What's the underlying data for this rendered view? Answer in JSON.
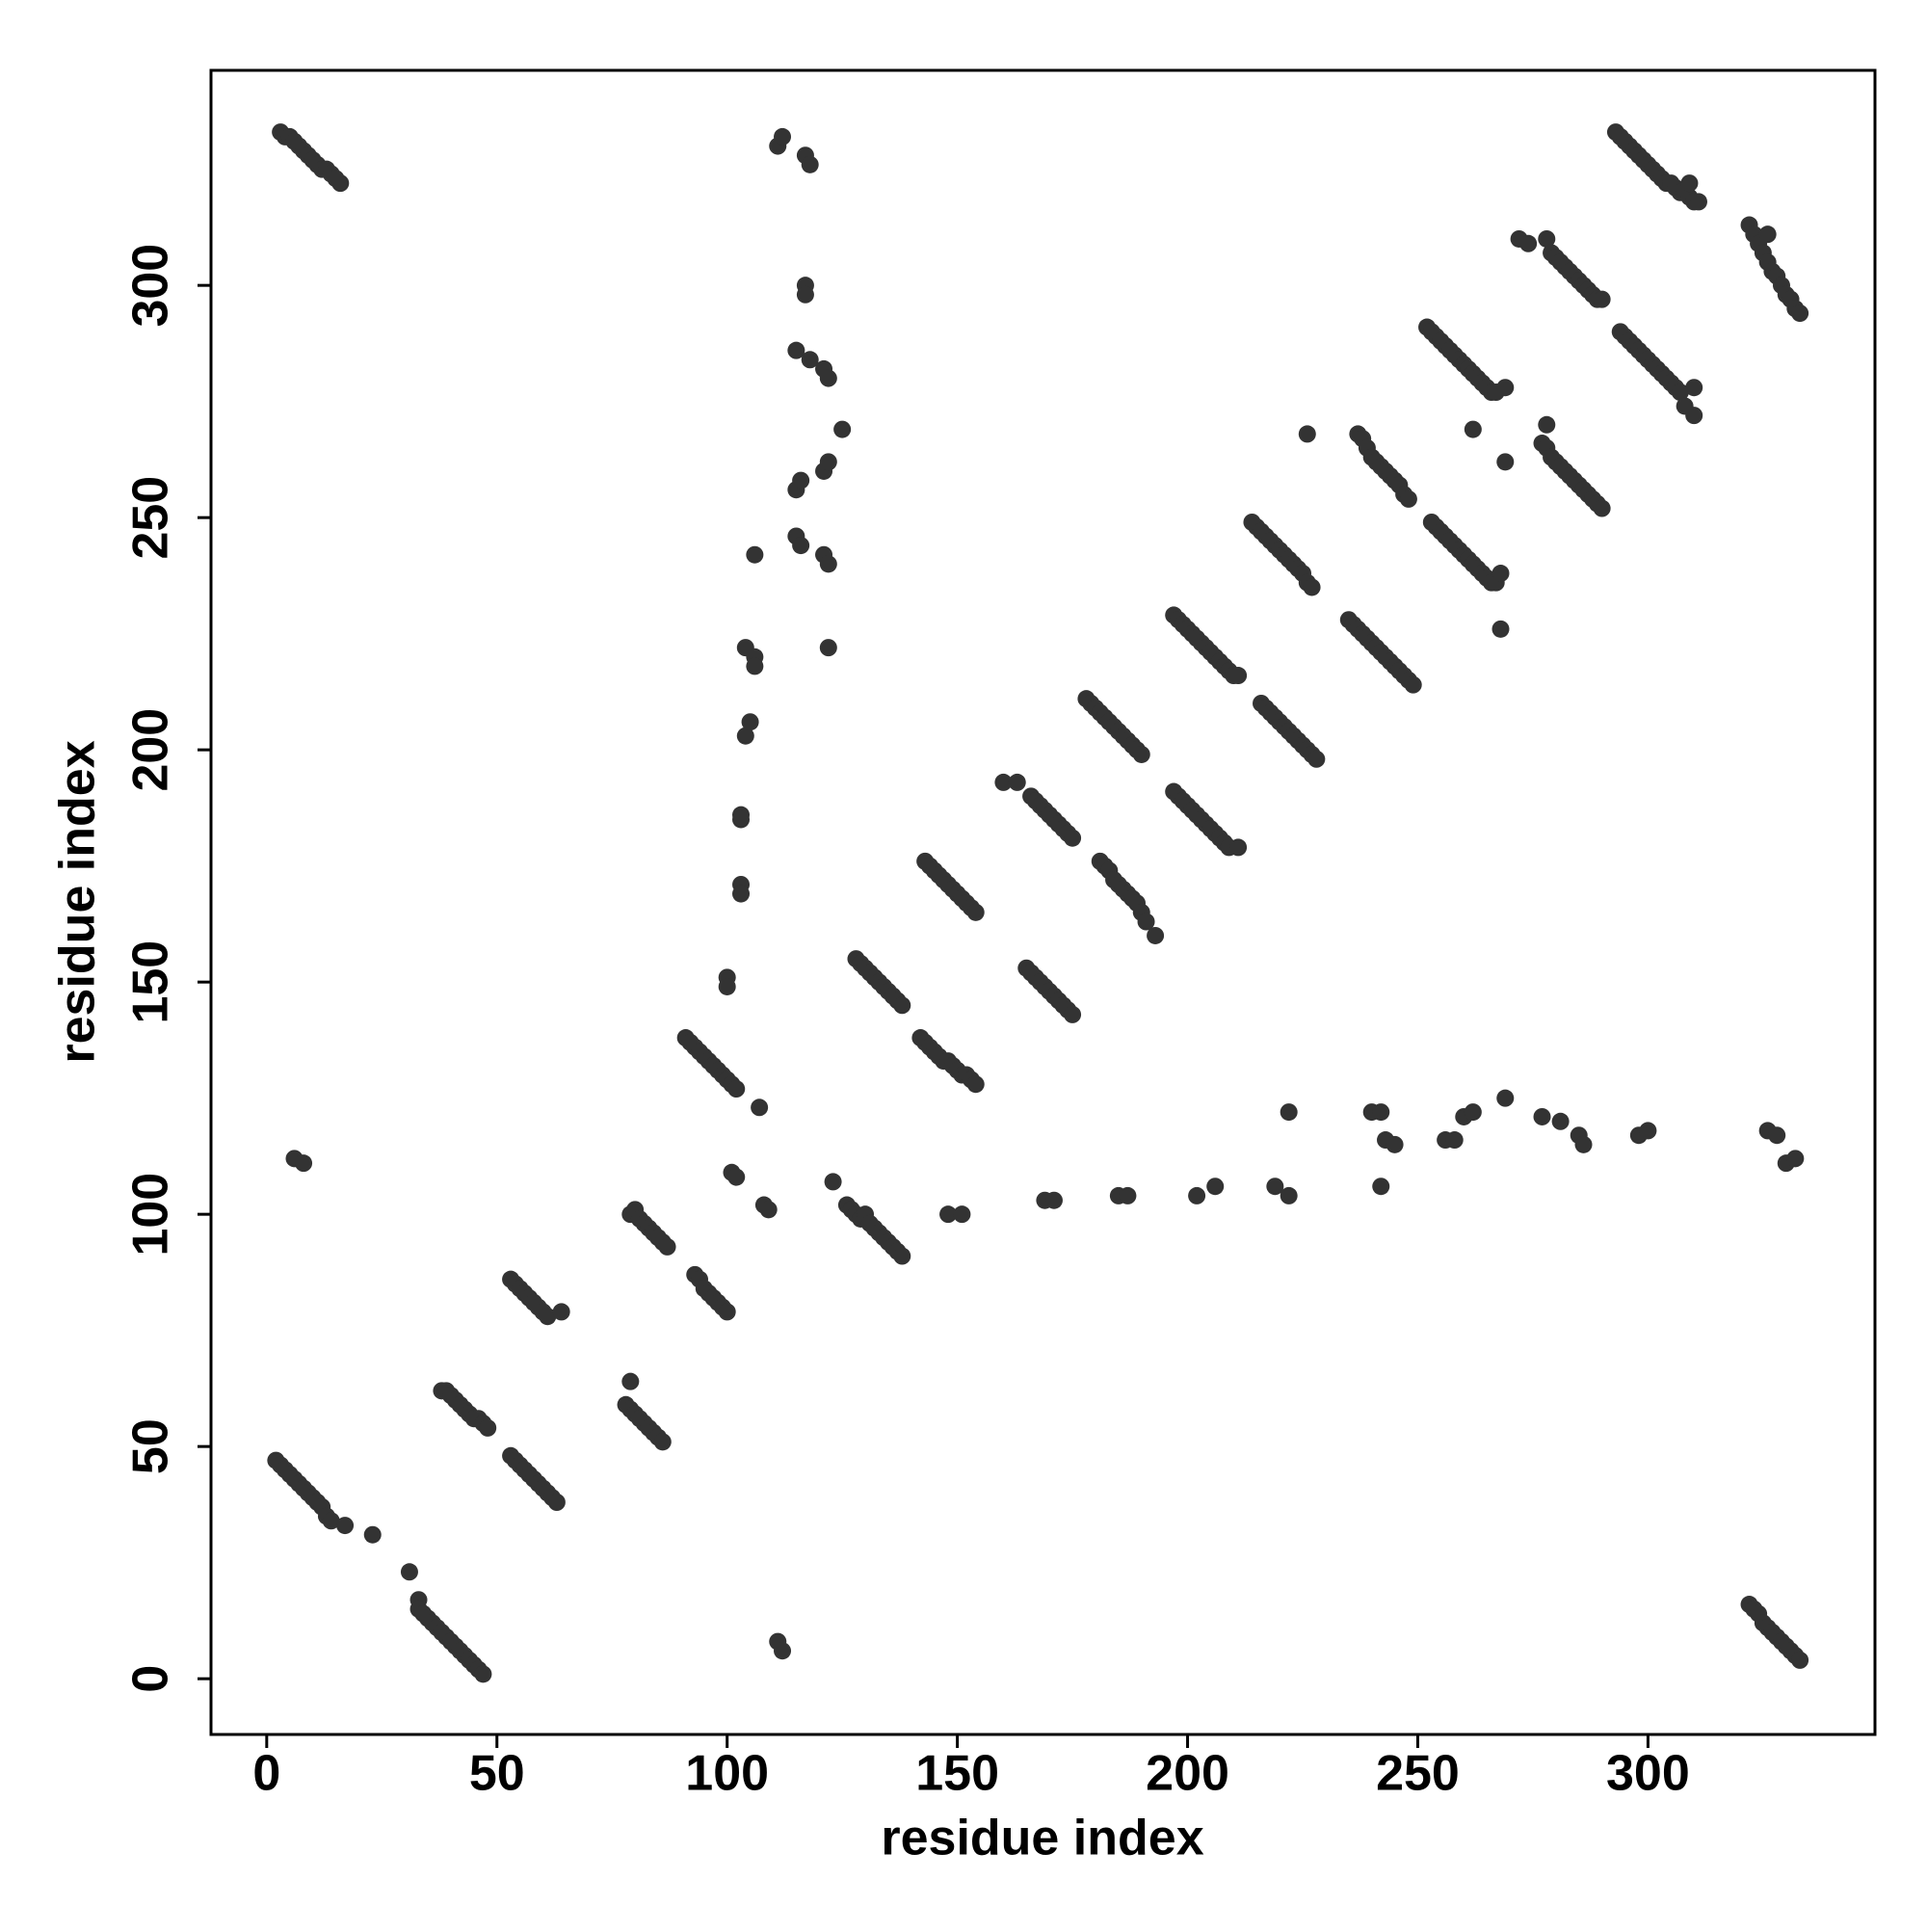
{
  "chart_data": {
    "type": "scatter",
    "xlabel": "residue index",
    "ylabel": "residue index",
    "color": "#333333",
    "xlim": [
      -12.1,
      349.3
    ],
    "ylim": [
      -12,
      346.3
    ],
    "xticks": [
      0,
      50,
      100,
      150,
      200,
      250,
      300
    ],
    "yticks": [
      0,
      50,
      100,
      150,
      200,
      250,
      300
    ],
    "x": [
      3,
      4,
      5,
      6,
      7,
      8,
      9,
      10,
      11,
      12,
      13,
      14,
      15,
      16,
      2,
      3,
      4,
      5,
      6,
      7,
      8,
      9,
      10,
      11,
      12,
      13,
      14,
      17,
      23,
      31,
      33,
      33,
      34,
      35,
      36,
      37,
      38,
      39,
      40,
      41,
      42,
      43,
      44,
      45,
      46,
      47,
      6,
      8,
      38,
      39,
      40,
      41,
      42,
      43,
      44,
      45,
      46,
      47,
      48,
      53,
      54,
      55,
      56,
      57,
      58,
      59,
      60,
      61,
      64,
      53,
      54,
      55,
      56,
      57,
      58,
      59,
      60,
      61,
      62,
      63,
      78,
      79,
      80,
      81,
      82,
      83,
      84,
      85,
      86,
      79,
      79,
      80,
      81,
      82,
      83,
      84,
      85,
      86,
      87,
      93,
      94,
      95,
      96,
      97,
      98,
      99,
      100,
      91,
      92,
      93,
      94,
      95,
      96,
      97,
      98,
      99,
      100,
      101,
      102,
      100,
      100,
      101,
      102,
      103,
      103,
      103,
      103,
      104,
      105,
      104,
      106,
      106,
      106,
      107,
      108,
      109,
      111,
      112,
      111,
      112,
      117,
      118,
      117,
      117,
      115,
      118,
      121,
      122,
      115,
      116,
      115,
      116,
      121,
      122,
      122,
      121,
      122,
      125,
      123,
      126,
      127,
      128,
      129,
      130,
      131,
      132,
      133,
      134,
      135,
      136,
      137,
      138,
      128,
      129,
      130,
      131,
      132,
      133,
      134,
      135,
      136,
      137,
      138,
      143,
      144,
      145,
      146,
      147,
      148,
      149,
      150,
      151,
      152,
      153,
      154,
      142,
      143,
      144,
      145,
      146,
      147,
      148,
      149,
      150,
      151,
      152,
      153,
      154,
      148,
      151,
      169,
      171,
      185,
      187,
      202,
      206,
      219,
      222,
      222,
      240,
      242,
      243,
      245,
      242,
      256,
      258,
      260,
      262,
      269,
      277,
      281,
      285,
      286,
      298,
      300,
      326,
      328,
      330,
      332,
      160,
      163,
      166,
      167,
      168,
      169,
      170,
      171,
      172,
      173,
      174,
      175,
      165,
      166,
      167,
      168,
      169,
      170,
      171,
      172,
      173,
      174,
      175,
      178,
      179,
      180,
      181,
      182,
      183,
      184,
      185,
      186,
      187,
      188,
      189,
      190,
      181,
      182,
      183,
      184,
      185,
      186,
      187,
      188,
      189,
      190,
      191,
      193,
      197,
      198,
      199,
      200,
      201,
      202,
      203,
      204,
      205,
      206,
      207,
      208,
      209,
      210,
      211,
      197,
      198,
      199,
      200,
      201,
      202,
      203,
      204,
      205,
      206,
      207,
      208,
      209,
      211,
      214,
      215,
      216,
      217,
      218,
      219,
      220,
      221,
      222,
      223,
      224,
      225,
      226,
      227,
      216,
      217,
      218,
      219,
      220,
      221,
      222,
      223,
      224,
      225,
      226,
      227,
      228,
      226,
      237,
      238,
      239,
      240,
      241,
      242,
      243,
      244,
      245,
      246,
      247,
      248,
      235,
      236,
      237,
      238,
      239,
      240,
      241,
      242,
      243,
      244,
      245,
      246,
      247,
      248,
      249,
      252,
      253,
      254,
      255,
      256,
      257,
      258,
      259,
      260,
      261,
      262,
      263,
      264,
      265,
      266,
      267,
      269,
      262,
      253,
      254,
      255,
      256,
      257,
      258,
      259,
      260,
      261,
      262,
      263,
      264,
      265,
      266,
      267,
      268,
      268,
      269,
      272,
      274,
      278,
      279,
      280,
      281,
      282,
      283,
      284,
      285,
      286,
      287,
      288,
      289,
      290,
      277,
      278,
      279,
      280,
      281,
      282,
      283,
      284,
      285,
      286,
      287,
      288,
      289,
      290,
      278,
      293,
      294,
      295,
      296,
      297,
      298,
      299,
      300,
      301,
      302,
      303,
      304,
      305,
      306,
      307,
      308,
      309,
      310,
      311,
      309,
      294,
      295,
      296,
      297,
      298,
      299,
      300,
      301,
      302,
      303,
      304,
      305,
      306,
      307,
      308,
      310,
      310,
      322,
      323,
      324,
      325,
      326,
      327,
      328,
      329,
      330,
      331,
      332,
      333,
      326,
      322,
      323,
      324,
      325,
      326,
      327,
      328,
      329,
      330,
      331,
      332,
      333
    ],
    "values": [
      333,
      332,
      332,
      331,
      330,
      329,
      328,
      327,
      326,
      325,
      325,
      324,
      323,
      322,
      47,
      46,
      45,
      44,
      43,
      42,
      41,
      40,
      39,
      38,
      37,
      35,
      34,
      33,
      31,
      23,
      17,
      15,
      14,
      13,
      12,
      11,
      10,
      9,
      8,
      7,
      6,
      5,
      4,
      3,
      2,
      1,
      112,
      111,
      62,
      62,
      61,
      60,
      59,
      58,
      57,
      56,
      56,
      55,
      54,
      86,
      85,
      84,
      83,
      82,
      81,
      80,
      79,
      78,
      79,
      48,
      47,
      46,
      45,
      44,
      43,
      42,
      41,
      40,
      39,
      38,
      59,
      58,
      57,
      56,
      55,
      54,
      53,
      52,
      51,
      64,
      100,
      101,
      99,
      98,
      97,
      96,
      95,
      94,
      93,
      87,
      86,
      84,
      83,
      82,
      81,
      80,
      79,
      138,
      137,
      136,
      135,
      134,
      133,
      132,
      131,
      130,
      129,
      128,
      127,
      151,
      149,
      109,
      108,
      171,
      169,
      186,
      185,
      203,
      206,
      222,
      220,
      218,
      242,
      123,
      102,
      101,
      8,
      6,
      330,
      332,
      328,
      326,
      300,
      298,
      286,
      284,
      282,
      280,
      256,
      258,
      246,
      244,
      242,
      240,
      222,
      260,
      262,
      269,
      107,
      102,
      101,
      100,
      99,
      100,
      98,
      97,
      96,
      95,
      94,
      93,
      92,
      91,
      155,
      154,
      153,
      152,
      151,
      150,
      149,
      148,
      147,
      146,
      145,
      176,
      175,
      174,
      173,
      172,
      171,
      170,
      169,
      168,
      167,
      166,
      165,
      138,
      137,
      136,
      135,
      134,
      133,
      133,
      132,
      131,
      130,
      130,
      129,
      128,
      100,
      100,
      103,
      103,
      104,
      104,
      104,
      106,
      106,
      104,
      122,
      122,
      122,
      116,
      115,
      106,
      116,
      116,
      121,
      122,
      125,
      121,
      120,
      117,
      115,
      117,
      118,
      118,
      117,
      111,
      112,
      193,
      193,
      190,
      189,
      188,
      187,
      186,
      185,
      184,
      183,
      182,
      181,
      153,
      152,
      151,
      150,
      149,
      148,
      147,
      146,
      145,
      144,
      143,
      211,
      210,
      209,
      208,
      207,
      206,
      205,
      204,
      203,
      202,
      201,
      200,
      199,
      176,
      175,
      174,
      172,
      171,
      170,
      169,
      168,
      167,
      165,
      163,
      160,
      229,
      228,
      227,
      226,
      225,
      224,
      223,
      222,
      221,
      220,
      219,
      218,
      217,
      216,
      216,
      191,
      190,
      189,
      188,
      187,
      186,
      185,
      184,
      183,
      182,
      181,
      180,
      179,
      179,
      249,
      248,
      247,
      246,
      245,
      244,
      243,
      242,
      241,
      240,
      239,
      238,
      236,
      235,
      210,
      209,
      208,
      207,
      206,
      205,
      204,
      203,
      202,
      201,
      200,
      199,
      198,
      268,
      268,
      267,
      265,
      263,
      262,
      261,
      260,
      259,
      258,
      257,
      255,
      254,
      228,
      227,
      226,
      225,
      224,
      223,
      222,
      221,
      220,
      219,
      218,
      217,
      216,
      215,
      214,
      291,
      290,
      289,
      288,
      287,
      286,
      285,
      284,
      283,
      282,
      281,
      280,
      279,
      278,
      277,
      277,
      278,
      269,
      249,
      248,
      247,
      246,
      245,
      244,
      243,
      242,
      241,
      240,
      239,
      238,
      237,
      236,
      236,
      238,
      226,
      262,
      310,
      309,
      310,
      307,
      306,
      305,
      304,
      303,
      302,
      301,
      300,
      299,
      298,
      297,
      297,
      266,
      265,
      263,
      262,
      261,
      260,
      259,
      258,
      257,
      256,
      255,
      254,
      253,
      252,
      270,
      333,
      332,
      331,
      330,
      329,
      328,
      327,
      326,
      325,
      324,
      323,
      322,
      322,
      321,
      320,
      320,
      319,
      318,
      318,
      322,
      290,
      289,
      288,
      287,
      286,
      285,
      284,
      283,
      282,
      281,
      280,
      279,
      278,
      277,
      274,
      272,
      278,
      313,
      311,
      309,
      307,
      305,
      303,
      302,
      300,
      298,
      297,
      295,
      294,
      311,
      16,
      15,
      14,
      12,
      11,
      10,
      9,
      8,
      7,
      6,
      5,
      4
    ]
  }
}
